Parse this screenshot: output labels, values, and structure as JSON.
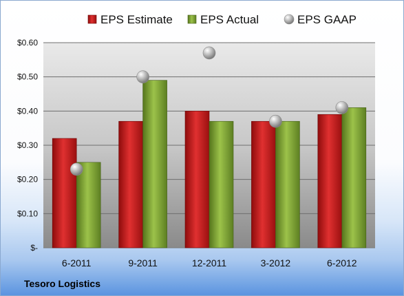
{
  "company": "Tesoro Logistics",
  "chart_data": {
    "type": "bar",
    "categories": [
      "6-2011",
      "9-2011",
      "12-2011",
      "3-2012",
      "6-2012"
    ],
    "series": [
      {
        "name": "EPS Estimate",
        "kind": "bar",
        "color": "#d42020",
        "values": [
          0.32,
          0.37,
          0.4,
          0.37,
          0.39
        ]
      },
      {
        "name": "EPS Actual",
        "kind": "bar",
        "color": "#8fb43c",
        "values": [
          0.25,
          0.49,
          0.37,
          0.37,
          0.41
        ]
      },
      {
        "name": "EPS GAAP",
        "kind": "scatter",
        "color": "#a8a8a8",
        "values": [
          0.23,
          0.5,
          0.57,
          0.37,
          0.41
        ]
      }
    ],
    "ylim": [
      0,
      0.6
    ],
    "yticks": [
      0,
      0.1,
      0.2,
      0.3,
      0.4,
      0.5,
      0.6
    ],
    "ytick_labels": [
      "$-",
      "$0.10",
      "$0.20",
      "$0.30",
      "$0.40",
      "$0.50",
      "$0.60"
    ],
    "grid": true,
    "legend_position": "top"
  }
}
